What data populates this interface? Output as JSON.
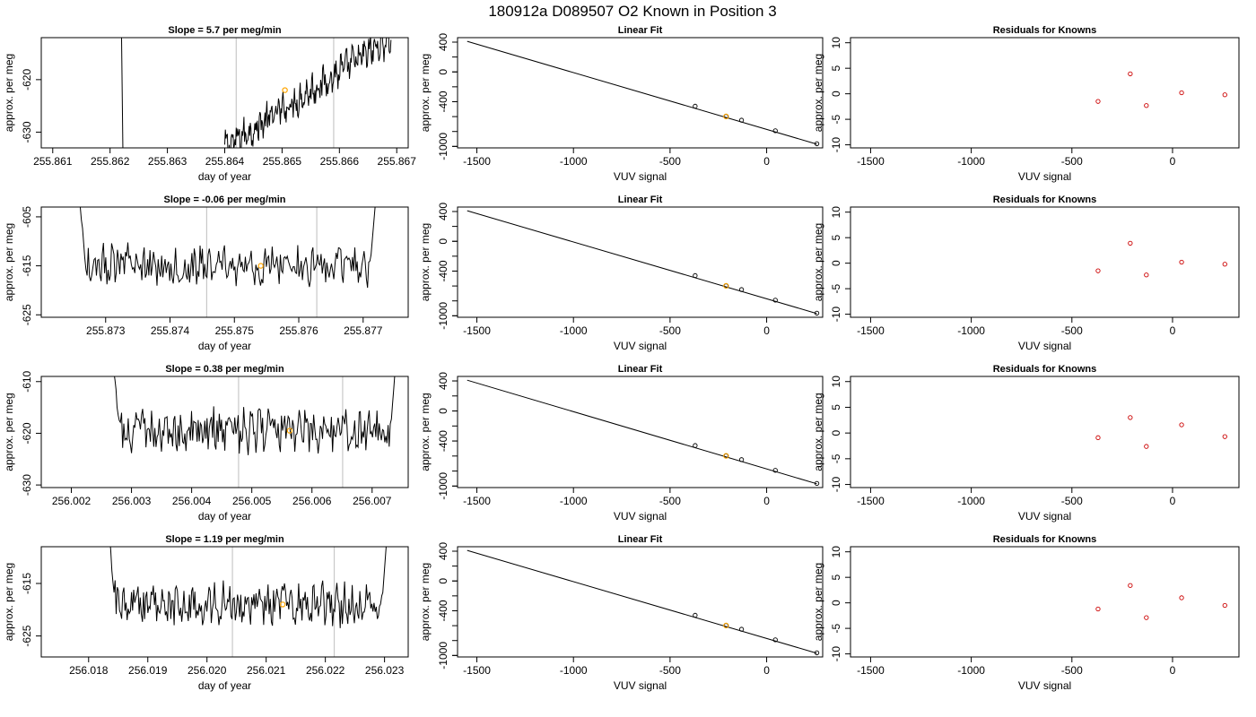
{
  "figure": {
    "main_title": "180912a      D089507   O2 Known in Position  3"
  },
  "colors": {
    "trace": "#000000",
    "marker_orange": "#ffa500",
    "residual_red": "#cc0000",
    "boundary_gray": "#c8c8c8"
  },
  "chart_data": [
    {
      "type": "line",
      "panel": "row1-slope",
      "title": "Slope =  5.7  per meg/min",
      "xlabel": "day of year",
      "ylabel": "approx. per meg",
      "xlim": [
        255.8608,
        255.8672
      ],
      "ylim": [
        -633,
        -612
      ],
      "xticks": [
        "255.861",
        "255.862",
        "255.863",
        "255.864",
        "255.865",
        "255.866",
        "255.867"
      ],
      "yticks": [
        "-620",
        "-630"
      ],
      "vlines": [
        255.8642,
        255.8659
      ],
      "marker": {
        "x": 255.86505,
        "y": -622
      },
      "trace_x_start": 255.864,
      "trace_x_end": 255.8669,
      "trace_spike_x": 255.8622
    },
    {
      "type": "scatter",
      "panel": "row1-fit",
      "title": "Linear Fit",
      "xlabel": "VUV signal",
      "ylabel": "approx. per meg",
      "xlim": [
        -1600,
        290
      ],
      "ylim": [
        -1020,
        460
      ],
      "xticks": [
        "-1500",
        "-1000",
        "-500",
        "0"
      ],
      "yticks": [
        "400",
        "0",
        "-400",
        "-1000"
      ],
      "fit_line": {
        "x": [
          -1550,
          260
        ],
        "y": [
          410,
          -970
        ]
      },
      "points": [
        {
          "x": -370,
          "y": -460
        },
        {
          "x": -210,
          "y": -598
        },
        {
          "x": -130,
          "y": -648
        },
        {
          "x": 45,
          "y": -790
        },
        {
          "x": 260,
          "y": -965
        }
      ],
      "highlight_index": 1
    },
    {
      "type": "scatter",
      "panel": "row1-resid",
      "title": "Residuals for Knowns",
      "xlabel": "VUV signal",
      "ylabel": "approx. per meg",
      "xlim": [
        -1600,
        330
      ],
      "ylim": [
        -10.6,
        11
      ],
      "xticks": [
        "-1500",
        "-1000",
        "-500",
        "0"
      ],
      "yticks": [
        "10",
        "5",
        "0",
        "-5",
        "-10"
      ],
      "points": [
        {
          "x": -370,
          "y": -1.5
        },
        {
          "x": -210,
          "y": 3.9
        },
        {
          "x": -130,
          "y": -2.3
        },
        {
          "x": 45,
          "y": 0.2
        },
        {
          "x": 260,
          "y": -0.2
        }
      ]
    },
    {
      "type": "line",
      "panel": "row2-slope",
      "title": "Slope =  -0.06  per meg/min",
      "xlabel": "day of year",
      "ylabel": "approx. per meg",
      "xlim": [
        255.872,
        255.8777
      ],
      "ylim": [
        -625.5,
        -603
      ],
      "xticks": [
        "255.873",
        "255.874",
        "255.875",
        "255.876",
        "255.877"
      ],
      "yticks": [
        "-605",
        "-615",
        "-625"
      ],
      "vlines": [
        255.87457,
        255.87628
      ],
      "marker": {
        "x": 255.87541,
        "y": -615
      },
      "trace_x_start": 255.87255,
      "trace_x_end": 255.87725
    },
    {
      "type": "scatter",
      "panel": "row2-fit",
      "title": "Linear Fit",
      "xlabel": "VUV signal",
      "ylabel": "approx. per meg",
      "xlim": [
        -1600,
        290
      ],
      "ylim": [
        -1020,
        460
      ],
      "xticks": [
        "-1500",
        "-1000",
        "-500",
        "0"
      ],
      "yticks": [
        "400",
        "0",
        "-400",
        "-1000"
      ],
      "fit_line": {
        "x": [
          -1550,
          260
        ],
        "y": [
          410,
          -970
        ]
      },
      "points": [
        {
          "x": -370,
          "y": -460
        },
        {
          "x": -210,
          "y": -598
        },
        {
          "x": -130,
          "y": -648
        },
        {
          "x": 45,
          "y": -790
        },
        {
          "x": 260,
          "y": -965
        }
      ],
      "highlight_index": 1
    },
    {
      "type": "scatter",
      "panel": "row2-resid",
      "title": "Residuals for Knowns",
      "xlabel": "VUV signal",
      "ylabel": "approx. per meg",
      "xlim": [
        -1600,
        330
      ],
      "ylim": [
        -10.6,
        11
      ],
      "xticks": [
        "-1500",
        "-1000",
        "-500",
        "0"
      ],
      "yticks": [
        "10",
        "5",
        "0",
        "-5",
        "-10"
      ],
      "points": [
        {
          "x": -370,
          "y": -1.5
        },
        {
          "x": -210,
          "y": 3.9
        },
        {
          "x": -130,
          "y": -2.3
        },
        {
          "x": 45,
          "y": 0.2
        },
        {
          "x": 260,
          "y": -0.2
        }
      ]
    },
    {
      "type": "line",
      "panel": "row3-slope",
      "title": "Slope =  0.38  per meg/min",
      "xlabel": "day of year",
      "ylabel": "approx. per meg",
      "xlim": [
        256.0015,
        256.0076
      ],
      "ylim": [
        -630.5,
        -609
      ],
      "xticks": [
        "256.002",
        "256.003",
        "256.004",
        "256.005",
        "256.006",
        "256.007"
      ],
      "yticks": [
        "-610",
        "-620",
        "-630"
      ],
      "vlines": [
        256.00478,
        256.00651
      ],
      "marker": {
        "x": 256.00563,
        "y": -619.5
      },
      "trace_x_start": 256.00265,
      "trace_x_end": 256.00745
    },
    {
      "type": "scatter",
      "panel": "row3-fit",
      "title": "Linear Fit",
      "xlabel": "VUV signal",
      "ylabel": "approx. per meg",
      "xlim": [
        -1600,
        290
      ],
      "ylim": [
        -1020,
        460
      ],
      "xticks": [
        "-1500",
        "-1000",
        "-500",
        "0"
      ],
      "yticks": [
        "400",
        "0",
        "-400",
        "-1000"
      ],
      "fit_line": {
        "x": [
          -1550,
          260
        ],
        "y": [
          410,
          -970
        ]
      },
      "points": [
        {
          "x": -370,
          "y": -460
        },
        {
          "x": -210,
          "y": -598
        },
        {
          "x": -130,
          "y": -648
        },
        {
          "x": 45,
          "y": -790
        },
        {
          "x": 260,
          "y": -965
        }
      ],
      "highlight_index": 1
    },
    {
      "type": "scatter",
      "panel": "row3-resid",
      "title": "Residuals for Knowns",
      "xlabel": "VUV signal",
      "ylabel": "approx. per meg",
      "xlim": [
        -1600,
        330
      ],
      "ylim": [
        -10.6,
        11
      ],
      "xticks": [
        "-1500",
        "-1000",
        "-500",
        "0"
      ],
      "yticks": [
        "10",
        "5",
        "0",
        "-5",
        "-10"
      ],
      "points": [
        {
          "x": -370,
          "y": -0.9
        },
        {
          "x": -210,
          "y": 3.0
        },
        {
          "x": -130,
          "y": -2.6
        },
        {
          "x": 45,
          "y": 1.6
        },
        {
          "x": 260,
          "y": -0.7
        }
      ]
    },
    {
      "type": "line",
      "panel": "row4-slope",
      "title": "Slope =  1.19  per meg/min",
      "xlabel": "day of year",
      "ylabel": "approx. per meg",
      "xlim": [
        256.0172,
        256.0234
      ],
      "ylim": [
        -629,
        -608
      ],
      "xticks": [
        "256.018",
        "256.019",
        "256.020",
        "256.021",
        "256.022",
        "256.023"
      ],
      "yticks": [
        "-615",
        "-625"
      ],
      "vlines": [
        256.02043,
        256.02215
      ],
      "marker": {
        "x": 256.02128,
        "y": -619
      },
      "trace_x_start": 256.0183,
      "trace_x_end": 256.0231
    },
    {
      "type": "scatter",
      "panel": "row4-fit",
      "title": "Linear Fit",
      "xlabel": "VUV signal",
      "ylabel": "approx. per meg",
      "xlim": [
        -1600,
        290
      ],
      "ylim": [
        -1020,
        460
      ],
      "xticks": [
        "-1500",
        "-1000",
        "-500",
        "0"
      ],
      "yticks": [
        "400",
        "0",
        "-400",
        "-1000"
      ],
      "fit_line": {
        "x": [
          -1550,
          260
        ],
        "y": [
          410,
          -970
        ]
      },
      "points": [
        {
          "x": -370,
          "y": -460
        },
        {
          "x": -210,
          "y": -598
        },
        {
          "x": -130,
          "y": -648
        },
        {
          "x": 45,
          "y": -790
        },
        {
          "x": 260,
          "y": -965
        }
      ],
      "highlight_index": 1
    },
    {
      "type": "scatter",
      "panel": "row4-resid",
      "title": "Residuals for Knowns",
      "xlabel": "VUV signal",
      "ylabel": "approx. per meg",
      "xlim": [
        -1600,
        330
      ],
      "ylim": [
        -10.6,
        11
      ],
      "xticks": [
        "-1500",
        "-1000",
        "-500",
        "0"
      ],
      "yticks": [
        "10",
        "5",
        "0",
        "-5",
        "-10"
      ],
      "points": [
        {
          "x": -370,
          "y": -1.2
        },
        {
          "x": -210,
          "y": 3.4
        },
        {
          "x": -130,
          "y": -2.9
        },
        {
          "x": 45,
          "y": 1.0
        },
        {
          "x": 260,
          "y": -0.5
        }
      ]
    }
  ]
}
